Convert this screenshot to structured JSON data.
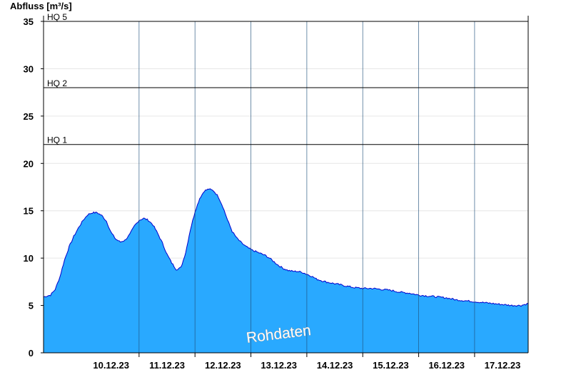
{
  "chart_data": {
    "type": "area",
    "ylabel": "Abfluss [m³/s]",
    "ylim": [
      0,
      35
    ],
    "yticks": [
      0,
      5,
      10,
      15,
      20,
      25,
      30,
      35
    ],
    "xlim": [
      "09.12.23 07:00",
      "17.12.23 23:00"
    ],
    "xticks": [
      "10.12.23",
      "11.12.23",
      "12.12.23",
      "13.12.23",
      "14.12.23",
      "15.12.23",
      "16.12.23",
      "17.12.23"
    ],
    "grid": true,
    "series": [
      {
        "values_hint": "hourly discharge, 09.12.23 07:00 to 17.12.23 23:00",
        "x": [
          "09.12.23 07:00",
          "09.12.23 10:00",
          "09.12.23 12:00",
          "09.12.23 14:00",
          "09.12.23 16:00",
          "09.12.23 18:00",
          "09.12.23 20:00",
          "09.12.23 22:00",
          "10.12.23 00:00",
          "10.12.23 02:00",
          "10.12.23 04:00",
          "10.12.23 06:00",
          "10.12.23 08:00",
          "10.12.23 10:00",
          "10.12.23 12:00",
          "10.12.23 14:00",
          "10.12.23 16:00",
          "10.12.23 18:00",
          "10.12.23 20:00",
          "10.12.23 22:00",
          "11.12.23 00:00",
          "11.12.23 02:00",
          "11.12.23 04:00",
          "11.12.23 06:00",
          "11.12.23 08:00",
          "11.12.23 10:00",
          "11.12.23 12:00",
          "11.12.23 14:00",
          "11.12.23 16:00",
          "11.12.23 18:00",
          "11.12.23 20:00",
          "11.12.23 22:00",
          "12.12.23 00:00",
          "12.12.23 02:00",
          "12.12.23 04:00",
          "12.12.23 06:00",
          "12.12.23 08:00",
          "12.12.23 10:00",
          "12.12.23 12:00",
          "12.12.23 14:00",
          "12.12.23 16:00",
          "12.12.23 18:00",
          "12.12.23 20:00",
          "12.12.23 22:00",
          "13.12.23 00:00",
          "13.12.23 02:00",
          "13.12.23 04:00",
          "13.12.23 06:00",
          "13.12.23 08:00",
          "13.12.23 10:00",
          "13.12.23 12:00",
          "13.12.23 14:00",
          "13.12.23 16:00",
          "13.12.23 18:00",
          "13.12.23 20:00",
          "13.12.23 22:00",
          "14.12.23 00:00",
          "14.12.23 02:00",
          "14.12.23 04:00",
          "14.12.23 08:00",
          "14.12.23 12:00",
          "14.12.23 16:00",
          "14.12.23 20:00",
          "15.12.23 00:00",
          "15.12.23 04:00",
          "15.12.23 08:00",
          "15.12.23 12:00",
          "15.12.23 16:00",
          "15.12.23 20:00",
          "16.12.23 00:00",
          "16.12.23 04:00",
          "16.12.23 08:00",
          "16.12.23 12:00",
          "16.12.23 16:00",
          "16.12.23 20:00",
          "17.12.23 00:00",
          "17.12.23 04:00",
          "17.12.23 08:00",
          "17.12.23 12:00",
          "17.12.23 16:00",
          "17.12.23 20:00",
          "17.12.23 23:00"
        ],
        "y": [
          5.9,
          6.1,
          6.7,
          8.0,
          9.8,
          11.2,
          12.3,
          13.2,
          14.0,
          14.6,
          14.8,
          14.8,
          14.5,
          13.9,
          12.7,
          12.0,
          11.7,
          11.9,
          12.5,
          13.4,
          14.0,
          14.2,
          14.0,
          13.5,
          12.6,
          11.6,
          10.4,
          9.5,
          8.8,
          9.0,
          10.6,
          13.0,
          14.9,
          16.3,
          17.1,
          17.3,
          17.1,
          16.5,
          15.4,
          14.0,
          12.8,
          12.1,
          11.6,
          11.2,
          10.9,
          10.7,
          10.5,
          10.3,
          10.0,
          9.6,
          9.2,
          8.9,
          8.7,
          8.6,
          8.6,
          8.5,
          8.3,
          8.1,
          7.8,
          7.5,
          7.3,
          7.1,
          6.9,
          6.8,
          6.8,
          6.7,
          6.6,
          6.4,
          6.3,
          6.1,
          6.0,
          5.9,
          5.8,
          5.6,
          5.5,
          5.4,
          5.3,
          5.2,
          5.1,
          5.0,
          5.0,
          5.2
        ]
      }
    ],
    "thresholds": [
      {
        "label": "HQ 1",
        "value": 22.0
      },
      {
        "label": "HQ 2",
        "value": 28.0
      },
      {
        "label": "HQ 5",
        "value": 35.0
      }
    ],
    "watermark": "Rohdaten",
    "colors": {
      "area_fill": "#29a9ff",
      "area_line": "#0000cc",
      "threshold": "#000000",
      "grid": "#e6e6e6"
    }
  }
}
